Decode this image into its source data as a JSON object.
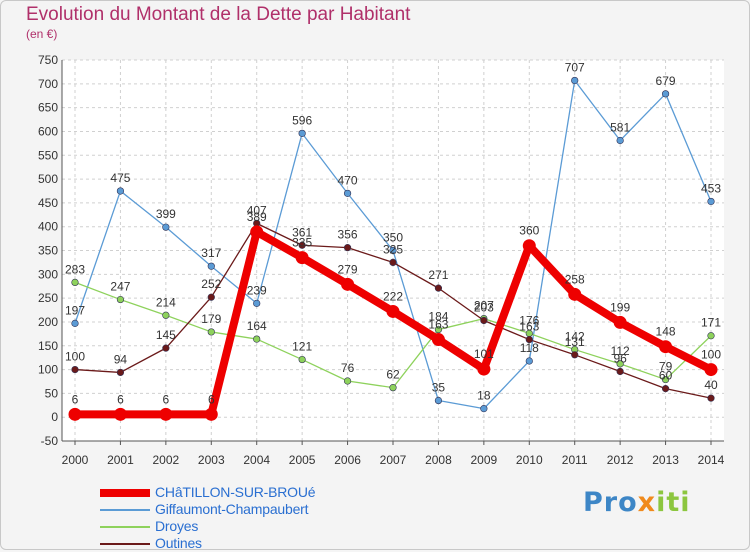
{
  "title": "Evolution du Montant de la Dette par Habitant",
  "subtitle": "(en €)",
  "logo": {
    "part1": "Pro",
    "part2": "x",
    "part3": "iti",
    "colors": [
      "#3d86c6",
      "#f08a1c",
      "#8cc63f"
    ]
  },
  "chart_data": {
    "type": "line",
    "x": [
      2000,
      2001,
      2002,
      2003,
      2004,
      2005,
      2006,
      2007,
      2008,
      2009,
      2010,
      2011,
      2012,
      2013,
      2014
    ],
    "ylim": [
      -50,
      750
    ],
    "yticks": [
      -50,
      0,
      50,
      100,
      150,
      200,
      250,
      300,
      350,
      400,
      450,
      500,
      550,
      600,
      650,
      700,
      750
    ],
    "grid": true,
    "legend_position": "bottom-left",
    "series": [
      {
        "name": "Giffaumont-Champaubert",
        "color": "#5b9bd5",
        "values": [
          197,
          475,
          399,
          317,
          239,
          596,
          470,
          350,
          35,
          18,
          118,
          707,
          581,
          679,
          453
        ]
      },
      {
        "name": "Droyes",
        "color": "#8ed25c",
        "values": [
          283,
          247,
          214,
          179,
          164,
          121,
          76,
          62,
          184,
          207,
          176,
          142,
          112,
          79,
          171
        ]
      },
      {
        "name": "Outines",
        "color": "#6b1a1a",
        "values": [
          100,
          94,
          145,
          252,
          407,
          361,
          356,
          325,
          271,
          203,
          163,
          131,
          96,
          60,
          40
        ]
      },
      {
        "name": "CHâTILLON-SUR-BROUé",
        "color": "#ee0000",
        "values": [
          6,
          6,
          6,
          6,
          389,
          335,
          279,
          222,
          163,
          101,
          360,
          258,
          199,
          148,
          100
        ]
      }
    ]
  }
}
